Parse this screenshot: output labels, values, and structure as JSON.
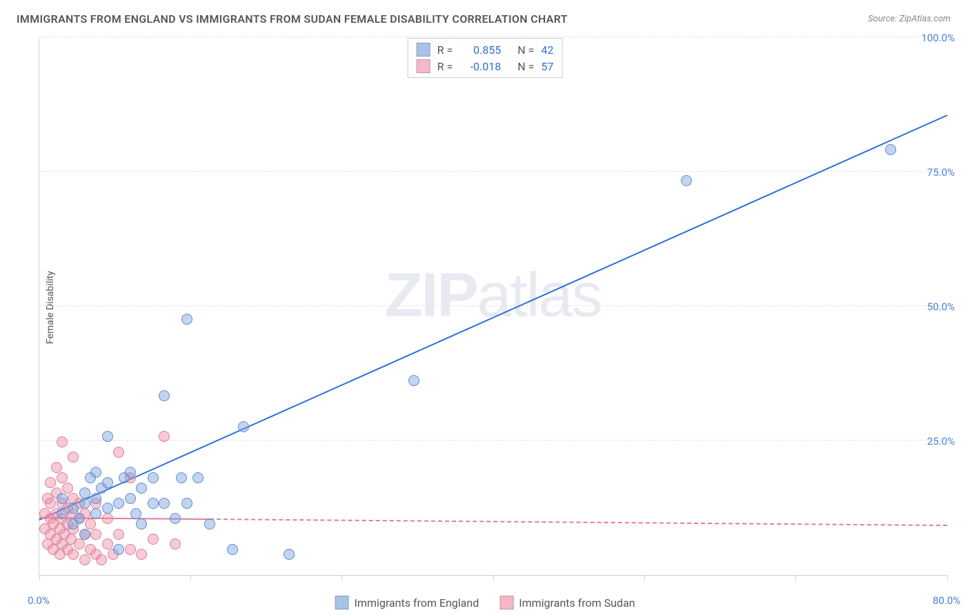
{
  "title": "IMMIGRANTS FROM ENGLAND VS IMMIGRANTS FROM SUDAN FEMALE DISABILITY CORRELATION CHART",
  "source": "Source: ZipAtlas.com",
  "ylabel": "Female Disability",
  "watermark_a": "ZIP",
  "watermark_b": "atlas",
  "chart": {
    "type": "scatter",
    "xlim": [
      0,
      80
    ],
    "ylim": [
      0,
      105
    ],
    "x_ticks": [
      0,
      13.3,
      26.6,
      40,
      53.3,
      66.6,
      80
    ],
    "x_tick_labels": {
      "0": "0.0%",
      "80": "80.0%"
    },
    "y_gridlines": [
      0,
      26.25,
      52.5,
      78.75,
      105
    ],
    "y_tick_labels": {
      "26.25": "25.0%",
      "52.5": "50.0%",
      "78.75": "75.0%",
      "105": "100.0%"
    },
    "background_color": "#ffffff",
    "grid_color": "#e0e0e0",
    "axis_color": "#d0d0d0",
    "tick_label_color": "#4a7fd8",
    "series": [
      {
        "name": "Immigrants from England",
        "color_fill": "rgba(120,160,220,0.45)",
        "color_stroke": "#5e8ed0",
        "swatch": "#a8c3e8",
        "legend_top": {
          "r_label": "R =",
          "r_value": "0.855",
          "n_label": "N =",
          "n_value": "42"
        },
        "trend": {
          "x1": 0,
          "y1": 11,
          "x2": 80,
          "y2": 90,
          "color": "#2e6fd6",
          "solid": true
        },
        "points": [
          [
            2,
            12
          ],
          [
            2,
            15
          ],
          [
            3,
            10
          ],
          [
            3,
            13
          ],
          [
            3.5,
            11
          ],
          [
            4,
            14
          ],
          [
            4,
            16
          ],
          [
            4,
            8
          ],
          [
            4.5,
            19
          ],
          [
            5,
            12
          ],
          [
            5,
            15
          ],
          [
            5,
            20
          ],
          [
            5.5,
            17
          ],
          [
            6,
            13
          ],
          [
            6,
            18
          ],
          [
            6,
            27
          ],
          [
            7,
            14
          ],
          [
            7,
            5
          ],
          [
            7.5,
            19
          ],
          [
            8,
            15
          ],
          [
            8,
            20
          ],
          [
            8.5,
            12
          ],
          [
            9,
            17
          ],
          [
            9,
            10
          ],
          [
            10,
            14
          ],
          [
            10,
            19
          ],
          [
            11,
            14
          ],
          [
            11,
            35
          ],
          [
            12,
            11
          ],
          [
            12.5,
            19
          ],
          [
            13,
            14
          ],
          [
            13,
            50
          ],
          [
            14,
            19
          ],
          [
            15,
            10
          ],
          [
            17,
            5
          ],
          [
            18,
            29
          ],
          [
            22,
            4
          ],
          [
            33,
            38
          ],
          [
            57,
            77
          ],
          [
            75,
            83
          ]
        ]
      },
      {
        "name": "Immigrants from Sudan",
        "color_fill": "rgba(235,140,165,0.45)",
        "color_stroke": "#e07d99",
        "swatch": "#f4b8c9",
        "legend_top": {
          "r_label": "R =",
          "r_value": "-0.018",
          "n_label": "N =",
          "n_value": "57"
        },
        "trend": {
          "x1": 0,
          "y1": 11.5,
          "x2": 80,
          "y2": 10,
          "color": "#e07d99",
          "solid_until_x": 15
        },
        "points": [
          [
            0.5,
            9
          ],
          [
            0.5,
            12
          ],
          [
            0.7,
            6
          ],
          [
            0.7,
            15
          ],
          [
            1,
            8
          ],
          [
            1,
            11
          ],
          [
            1,
            14
          ],
          [
            1,
            18
          ],
          [
            1.2,
            5
          ],
          [
            1.2,
            10
          ],
          [
            1.5,
            7
          ],
          [
            1.5,
            12
          ],
          [
            1.5,
            16
          ],
          [
            1.5,
            21
          ],
          [
            1.8,
            4
          ],
          [
            1.8,
            9
          ],
          [
            2,
            6
          ],
          [
            2,
            11
          ],
          [
            2,
            14
          ],
          [
            2,
            19
          ],
          [
            2,
            26
          ],
          [
            2.2,
            8
          ],
          [
            2.5,
            5
          ],
          [
            2.5,
            10
          ],
          [
            2.5,
            13
          ],
          [
            2.5,
            17
          ],
          [
            2.8,
            7
          ],
          [
            3,
            4
          ],
          [
            3,
            9
          ],
          [
            3,
            12
          ],
          [
            3,
            15
          ],
          [
            3,
            23
          ],
          [
            3.5,
            6
          ],
          [
            3.5,
            11
          ],
          [
            3.5,
            14
          ],
          [
            4,
            3
          ],
          [
            4,
            8
          ],
          [
            4,
            12
          ],
          [
            4.5,
            5
          ],
          [
            4.5,
            10
          ],
          [
            5,
            4
          ],
          [
            5,
            8
          ],
          [
            5,
            14
          ],
          [
            5.5,
            3
          ],
          [
            6,
            6
          ],
          [
            6,
            11
          ],
          [
            6.5,
            4
          ],
          [
            7,
            8
          ],
          [
            7,
            24
          ],
          [
            8,
            5
          ],
          [
            8,
            19
          ],
          [
            9,
            4
          ],
          [
            10,
            7
          ],
          [
            11,
            27
          ],
          [
            12,
            6
          ]
        ]
      }
    ]
  },
  "legend_bottom": [
    {
      "swatch": "#a8c3e8",
      "label": "Immigrants from England"
    },
    {
      "swatch": "#f4b8c9",
      "label": "Immigrants from Sudan"
    }
  ]
}
